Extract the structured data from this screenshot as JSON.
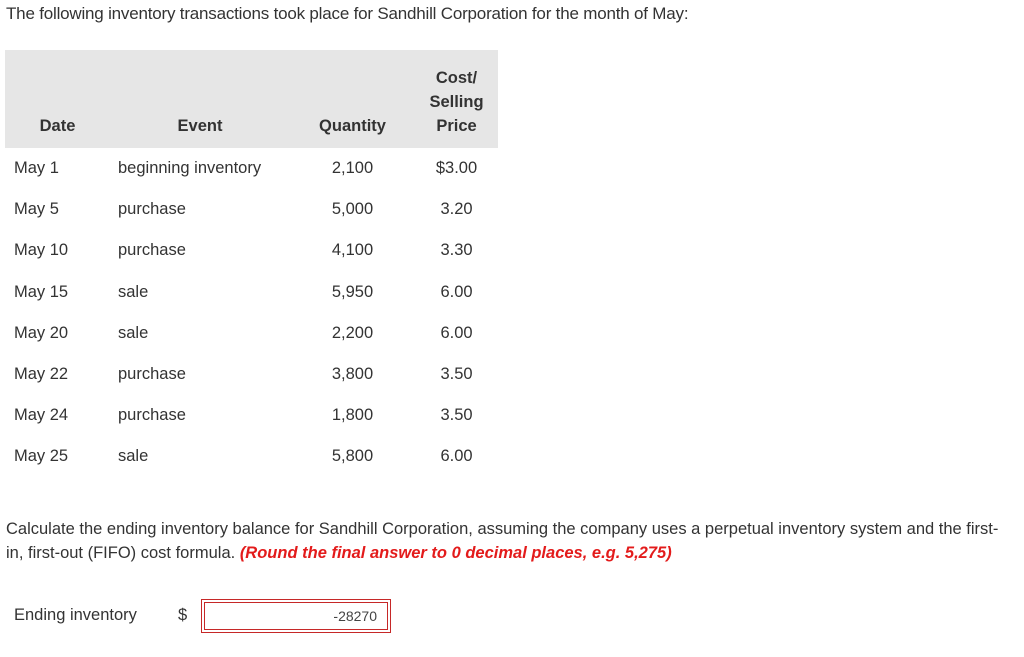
{
  "intro": "The following inventory transactions took place for Sandhill Corporation for the month of May:",
  "table": {
    "headers": {
      "date": "Date",
      "event": "Event",
      "quantity": "Quantity",
      "price_line1": "Cost/",
      "price_line2": "Selling",
      "price_line3": "Price"
    },
    "rows": [
      {
        "date": "May 1",
        "event": "beginning inventory",
        "quantity": "2,100",
        "price": "$3.00"
      },
      {
        "date": "May 5",
        "event": "purchase",
        "quantity": "5,000",
        "price": "3.20"
      },
      {
        "date": "May 10",
        "event": "purchase",
        "quantity": "4,100",
        "price": "3.30"
      },
      {
        "date": "May 15",
        "event": "sale",
        "quantity": "5,950",
        "price": "6.00"
      },
      {
        "date": "May 20",
        "event": "sale",
        "quantity": "2,200",
        "price": "6.00"
      },
      {
        "date": "May 22",
        "event": "purchase",
        "quantity": "3,800",
        "price": "3.50"
      },
      {
        "date": "May 24",
        "event": "purchase",
        "quantity": "1,800",
        "price": "3.50"
      },
      {
        "date": "May 25",
        "event": "sale",
        "quantity": "5,800",
        "price": "6.00"
      }
    ]
  },
  "question": {
    "text": "Calculate the ending inventory balance for Sandhill Corporation, assuming the company uses a perpetual inventory system and the first-in, first-out (FIFO) cost formula.",
    "instruction": "(Round the final answer to 0 decimal places, e.g. 5,275)"
  },
  "answer": {
    "label": "Ending inventory",
    "currency": "$",
    "value": "-28270"
  },
  "colors": {
    "header_bg": "#e6e6e6",
    "instruction": "#e31b1b",
    "answer_border": "#c62828"
  }
}
